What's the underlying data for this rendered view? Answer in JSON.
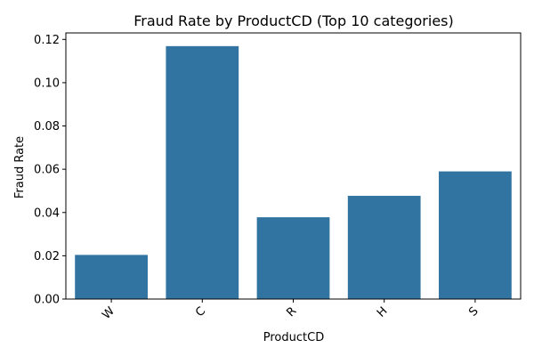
{
  "chart_data": {
    "type": "bar",
    "title": "Fraud Rate by ProductCD (Top 10 categories)",
    "xlabel": "ProductCD",
    "ylabel": "Fraud Rate",
    "categories": [
      "W",
      "C",
      "R",
      "H",
      "S"
    ],
    "values": [
      0.0204,
      0.1169,
      0.0378,
      0.0477,
      0.059
    ],
    "ylim": [
      0,
      0.123
    ],
    "yticks": [
      0.0,
      0.02,
      0.04,
      0.06,
      0.08,
      0.1,
      0.12
    ],
    "ytick_labels": [
      "0.00",
      "0.02",
      "0.04",
      "0.06",
      "0.08",
      "0.10",
      "0.12"
    ],
    "xtick_rotation": 45,
    "bar_color": "#3274a1",
    "grid": false,
    "legend": "none"
  }
}
